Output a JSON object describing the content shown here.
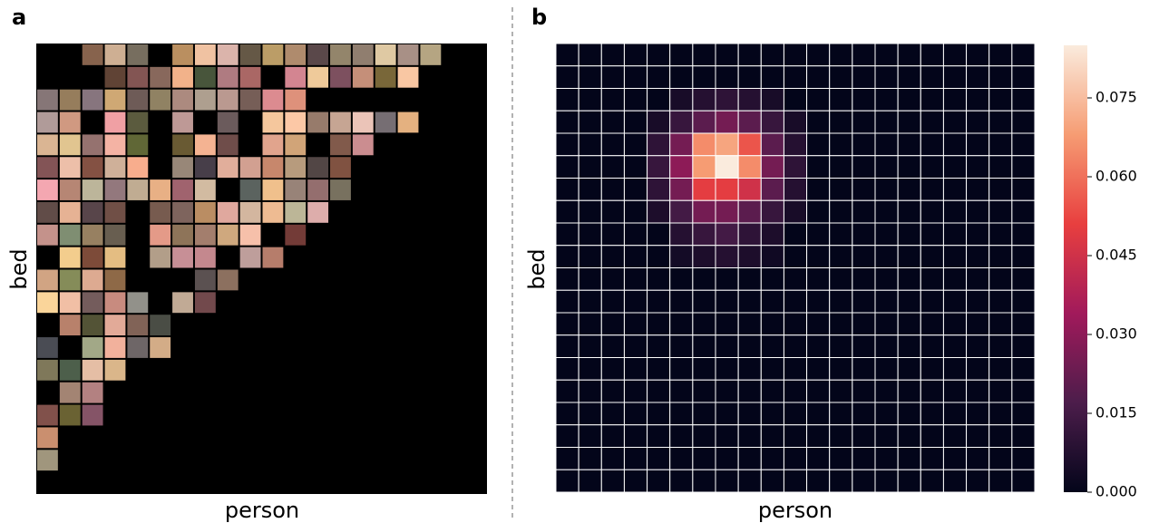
{
  "chart_data": [
    {
      "type": "image-grid",
      "panel_label": "a",
      "xlabel": "person",
      "ylabel": "bed"
    },
    {
      "type": "heatmap",
      "panel_label": "b",
      "xlabel": "person",
      "ylabel": "bed",
      "colormap": "rocket",
      "clim": [
        0,
        0.085
      ],
      "cticks": [
        {
          "value": 0,
          "label": "0.000"
        },
        0.015,
        {
          "value": 0.03,
          "label": "0.030"
        },
        0.045,
        {
          "value": 0.06,
          "label": "0.060"
        },
        0.075
      ],
      "values": [
        [
          0,
          0,
          0,
          0,
          0,
          0,
          0,
          0,
          0,
          0,
          0,
          0,
          0,
          0,
          0,
          0,
          0,
          0,
          0,
          0,
          0
        ],
        [
          0,
          0,
          0,
          0,
          0,
          0,
          0,
          0,
          0,
          0,
          0,
          0,
          0,
          0,
          0,
          0,
          0,
          0,
          0,
          0,
          0
        ],
        [
          0,
          0,
          0,
          0,
          0,
          0.005,
          0.008,
          0.01,
          0.008,
          0.005,
          0,
          0,
          0,
          0,
          0,
          0,
          0,
          0,
          0,
          0,
          0
        ],
        [
          0,
          0,
          0,
          0,
          0.005,
          0.012,
          0.02,
          0.025,
          0.02,
          0.012,
          0.005,
          0,
          0,
          0,
          0,
          0,
          0,
          0,
          0,
          0,
          0
        ],
        [
          0,
          0,
          0,
          0,
          0.01,
          0.025,
          0.065,
          0.07,
          0.055,
          0.02,
          0.008,
          0,
          0,
          0,
          0,
          0,
          0,
          0,
          0,
          0,
          0
        ],
        [
          0,
          0,
          0,
          0,
          0.012,
          0.03,
          0.068,
          0.085,
          0.065,
          0.025,
          0.01,
          0,
          0,
          0,
          0,
          0,
          0,
          0,
          0,
          0,
          0
        ],
        [
          0,
          0,
          0,
          0,
          0.01,
          0.025,
          0.05,
          0.05,
          0.045,
          0.02,
          0.008,
          0,
          0,
          0,
          0,
          0,
          0,
          0,
          0,
          0,
          0
        ],
        [
          0,
          0,
          0,
          0,
          0.006,
          0.015,
          0.025,
          0.025,
          0.02,
          0.012,
          0.005,
          0,
          0,
          0,
          0,
          0,
          0,
          0,
          0,
          0,
          0
        ],
        [
          0,
          0,
          0,
          0,
          0,
          0.008,
          0.012,
          0.015,
          0.01,
          0.006,
          0,
          0,
          0,
          0,
          0,
          0,
          0,
          0,
          0,
          0,
          0
        ],
        [
          0,
          0,
          0,
          0,
          0,
          0.004,
          0.006,
          0.008,
          0.006,
          0.003,
          0,
          0,
          0,
          0,
          0,
          0,
          0,
          0,
          0,
          0,
          0
        ],
        [
          0,
          0,
          0,
          0,
          0,
          0,
          0,
          0,
          0,
          0,
          0,
          0,
          0,
          0,
          0,
          0,
          0,
          0,
          0,
          0,
          0
        ],
        [
          0,
          0,
          0,
          0,
          0,
          0,
          0,
          0,
          0,
          0,
          0,
          0,
          0,
          0,
          0,
          0,
          0,
          0,
          0,
          0,
          0
        ],
        [
          0,
          0,
          0,
          0,
          0,
          0,
          0,
          0,
          0,
          0,
          0,
          0,
          0,
          0,
          0,
          0,
          0,
          0,
          0,
          0,
          0
        ],
        [
          0,
          0,
          0,
          0,
          0,
          0,
          0,
          0,
          0,
          0,
          0,
          0,
          0,
          0,
          0,
          0,
          0,
          0,
          0,
          0,
          0
        ],
        [
          0,
          0,
          0,
          0,
          0,
          0,
          0,
          0,
          0,
          0,
          0,
          0,
          0,
          0,
          0,
          0,
          0,
          0,
          0,
          0,
          0
        ],
        [
          0,
          0,
          0,
          0,
          0,
          0,
          0,
          0,
          0,
          0,
          0,
          0,
          0,
          0,
          0,
          0,
          0,
          0,
          0,
          0,
          0
        ],
        [
          0,
          0,
          0,
          0,
          0,
          0,
          0,
          0,
          0,
          0,
          0,
          0,
          0,
          0,
          0,
          0,
          0,
          0,
          0,
          0,
          0
        ],
        [
          0,
          0,
          0,
          0,
          0,
          0,
          0,
          0,
          0,
          0,
          0,
          0,
          0,
          0,
          0,
          0,
          0,
          0,
          0,
          0,
          0
        ],
        [
          0,
          0,
          0,
          0,
          0,
          0,
          0,
          0,
          0,
          0,
          0,
          0,
          0,
          0,
          0,
          0,
          0,
          0,
          0,
          0,
          0
        ],
        [
          0,
          0,
          0,
          0,
          0,
          0,
          0,
          0,
          0,
          0,
          0,
          0,
          0,
          0,
          0,
          0,
          0,
          0,
          0,
          0,
          0
        ]
      ]
    }
  ]
}
